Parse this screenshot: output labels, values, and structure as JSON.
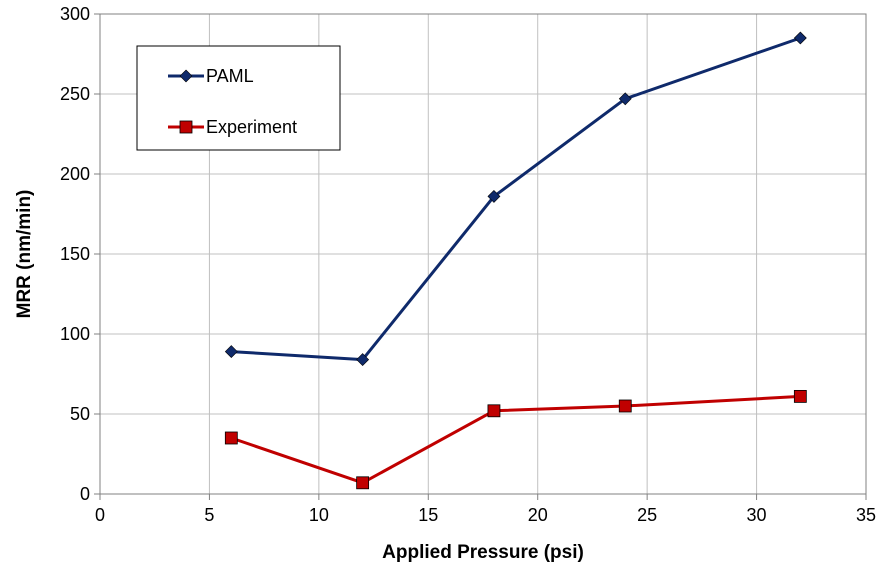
{
  "chart_data": {
    "type": "line",
    "title": "",
    "xlabel": "Applied Pressure (psi)",
    "ylabel": "MRR (nm/min)",
    "xlim": [
      0,
      35
    ],
    "ylim": [
      0,
      300
    ],
    "xticks": [
      0,
      5,
      10,
      15,
      20,
      25,
      30,
      35
    ],
    "yticks": [
      0,
      50,
      100,
      150,
      200,
      250,
      300
    ],
    "grid": true,
    "legend_position": "top-left",
    "series": [
      {
        "name": "PAML",
        "color": "#0f2a6b",
        "marker": "diamond",
        "x": [
          6,
          12,
          18,
          24,
          32
        ],
        "y": [
          89,
          84,
          186,
          247,
          285
        ]
      },
      {
        "name": "Experiment",
        "color": "#c00000",
        "marker": "square",
        "x": [
          6,
          12,
          18,
          24,
          32
        ],
        "y": [
          35,
          7,
          52,
          55,
          61
        ]
      }
    ]
  }
}
